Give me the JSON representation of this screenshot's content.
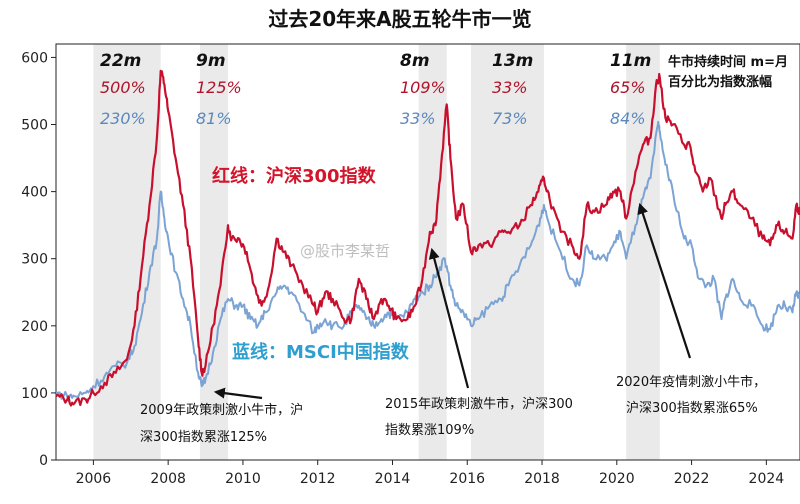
{
  "chart_data": {
    "type": "line",
    "title": "过去20年来A股五轮牛市一览",
    "x_range": [
      2005,
      2024.9
    ],
    "ylim": [
      0,
      620
    ],
    "x_ticks": [
      {
        "v": 2006,
        "t": "2006"
      },
      {
        "v": 2008,
        "t": "2008"
      },
      {
        "v": 2010,
        "t": "2010"
      },
      {
        "v": 2012,
        "t": "2012"
      },
      {
        "v": 2014,
        "t": "2014"
      },
      {
        "v": 2016,
        "t": "2016"
      },
      {
        "v": 2018,
        "t": "2018"
      },
      {
        "v": 2020,
        "t": "2020"
      },
      {
        "v": 2022,
        "t": "2022"
      },
      {
        "v": 2024,
        "t": "2024"
      }
    ],
    "y_ticks": [
      {
        "v": 0,
        "t": "0"
      },
      {
        "v": 100,
        "t": "100"
      },
      {
        "v": 200,
        "t": "200"
      },
      {
        "v": 300,
        "t": "300"
      },
      {
        "v": 400,
        "t": "400"
      },
      {
        "v": 500,
        "t": "500"
      },
      {
        "v": 600,
        "t": "600"
      }
    ],
    "bull_markets": [
      {
        "start": 2006.0,
        "end": 2007.8,
        "duration": "22m",
        "hs300": "500%",
        "msci": "230%"
      },
      {
        "start": 2008.85,
        "end": 2009.6,
        "duration": "9m",
        "hs300": "125%",
        "msci": "81%"
      },
      {
        "start": 2014.7,
        "end": 2015.45,
        "duration": "8m",
        "hs300": "109%",
        "msci": "33%"
      },
      {
        "start": 2016.1,
        "end": 2018.05,
        "duration": "13m",
        "hs300": "33%",
        "msci": "73%"
      },
      {
        "start": 2020.25,
        "end": 2021.15,
        "duration": "11m",
        "hs300": "65%",
        "msci": "84%"
      }
    ],
    "legend_note": [
      "牛市持续时间 m=月",
      "百分比为指数涨幅"
    ],
    "series": [
      {
        "name": "红线：沪深300指数",
        "color": "#c8102e",
        "points": [
          [
            2005.0,
            95
          ],
          [
            2005.3,
            90
          ],
          [
            2005.5,
            85
          ],
          [
            2005.8,
            90
          ],
          [
            2006.0,
            100
          ],
          [
            2006.3,
            115
          ],
          [
            2006.6,
            130
          ],
          [
            2006.9,
            150
          ],
          [
            2007.1,
            200
          ],
          [
            2007.3,
            290
          ],
          [
            2007.5,
            380
          ],
          [
            2007.7,
            480
          ],
          [
            2007.8,
            580
          ],
          [
            2007.9,
            560
          ],
          [
            2008.0,
            520
          ],
          [
            2008.2,
            450
          ],
          [
            2008.4,
            380
          ],
          [
            2008.6,
            300
          ],
          [
            2008.8,
            180
          ],
          [
            2008.9,
            130
          ],
          [
            2009.0,
            140
          ],
          [
            2009.2,
            200
          ],
          [
            2009.4,
            260
          ],
          [
            2009.6,
            350
          ],
          [
            2009.7,
            330
          ],
          [
            2009.9,
            330
          ],
          [
            2010.1,
            310
          ],
          [
            2010.3,
            260
          ],
          [
            2010.5,
            230
          ],
          [
            2010.7,
            260
          ],
          [
            2010.9,
            330
          ],
          [
            2011.1,
            310
          ],
          [
            2011.3,
            290
          ],
          [
            2011.6,
            260
          ],
          [
            2011.9,
            230
          ],
          [
            2012.0,
            220
          ],
          [
            2012.2,
            250
          ],
          [
            2012.4,
            240
          ],
          [
            2012.7,
            210
          ],
          [
            2012.9,
            210
          ],
          [
            2013.1,
            270
          ],
          [
            2013.3,
            240
          ],
          [
            2013.5,
            210
          ],
          [
            2013.7,
            240
          ],
          [
            2013.9,
            230
          ],
          [
            2014.1,
            210
          ],
          [
            2014.4,
            210
          ],
          [
            2014.6,
            230
          ],
          [
            2014.8,
            270
          ],
          [
            2015.0,
            340
          ],
          [
            2015.15,
            350
          ],
          [
            2015.3,
            440
          ],
          [
            2015.45,
            530
          ],
          [
            2015.55,
            450
          ],
          [
            2015.7,
            360
          ],
          [
            2015.9,
            380
          ],
          [
            2016.1,
            310
          ],
          [
            2016.3,
            320
          ],
          [
            2016.6,
            320
          ],
          [
            2016.9,
            340
          ],
          [
            2017.1,
            340
          ],
          [
            2017.4,
            350
          ],
          [
            2017.7,
            380
          ],
          [
            2017.9,
            400
          ],
          [
            2018.05,
            420
          ],
          [
            2018.2,
            390
          ],
          [
            2018.5,
            340
          ],
          [
            2018.8,
            320
          ],
          [
            2019.0,
            300
          ],
          [
            2019.2,
            380
          ],
          [
            2019.4,
            370
          ],
          [
            2019.7,
            380
          ],
          [
            2019.9,
            400
          ],
          [
            2020.1,
            400
          ],
          [
            2020.25,
            360
          ],
          [
            2020.5,
            430
          ],
          [
            2020.7,
            470
          ],
          [
            2020.9,
            480
          ],
          [
            2021.05,
            560
          ],
          [
            2021.15,
            570
          ],
          [
            2021.3,
            510
          ],
          [
            2021.5,
            500
          ],
          [
            2021.8,
            470
          ],
          [
            2021.95,
            470
          ],
          [
            2022.1,
            430
          ],
          [
            2022.3,
            400
          ],
          [
            2022.5,
            420
          ],
          [
            2022.8,
            360
          ],
          [
            2022.9,
            380
          ],
          [
            2023.1,
            400
          ],
          [
            2023.3,
            380
          ],
          [
            2023.6,
            360
          ],
          [
            2023.9,
            330
          ],
          [
            2024.1,
            320
          ],
          [
            2024.3,
            350
          ],
          [
            2024.5,
            340
          ],
          [
            2024.7,
            330
          ],
          [
            2024.8,
            380
          ],
          [
            2024.9,
            370
          ]
        ]
      },
      {
        "name": "蓝线：MSCI中国指数",
        "color": "#7ba3d3",
        "points": [
          [
            2005.0,
            100
          ],
          [
            2005.3,
            95
          ],
          [
            2005.5,
            95
          ],
          [
            2005.8,
            100
          ],
          [
            2006.0,
            110
          ],
          [
            2006.3,
            125
          ],
          [
            2006.6,
            140
          ],
          [
            2006.9,
            145
          ],
          [
            2007.1,
            170
          ],
          [
            2007.3,
            220
          ],
          [
            2007.5,
            280
          ],
          [
            2007.7,
            330
          ],
          [
            2007.8,
            400
          ],
          [
            2007.9,
            360
          ],
          [
            2008.0,
            330
          ],
          [
            2008.2,
            280
          ],
          [
            2008.4,
            240
          ],
          [
            2008.6,
            200
          ],
          [
            2008.8,
            130
          ],
          [
            2008.9,
            110
          ],
          [
            2009.0,
            120
          ],
          [
            2009.2,
            160
          ],
          [
            2009.4,
            210
          ],
          [
            2009.6,
            240
          ],
          [
            2009.8,
            230
          ],
          [
            2010.0,
            230
          ],
          [
            2010.2,
            210
          ],
          [
            2010.4,
            200
          ],
          [
            2010.6,
            220
          ],
          [
            2010.9,
            250
          ],
          [
            2011.1,
            260
          ],
          [
            2011.3,
            250
          ],
          [
            2011.6,
            220
          ],
          [
            2011.9,
            190
          ],
          [
            2012.0,
            200
          ],
          [
            2012.2,
            210
          ],
          [
            2012.4,
            200
          ],
          [
            2012.7,
            200
          ],
          [
            2012.9,
            220
          ],
          [
            2013.1,
            230
          ],
          [
            2013.3,
            210
          ],
          [
            2013.5,
            200
          ],
          [
            2013.7,
            210
          ],
          [
            2013.9,
            220
          ],
          [
            2014.1,
            210
          ],
          [
            2014.4,
            220
          ],
          [
            2014.6,
            240
          ],
          [
            2014.8,
            250
          ],
          [
            2015.0,
            260
          ],
          [
            2015.2,
            280
          ],
          [
            2015.4,
            300
          ],
          [
            2015.55,
            260
          ],
          [
            2015.7,
            230
          ],
          [
            2015.9,
            220
          ],
          [
            2016.1,
            200
          ],
          [
            2016.3,
            210
          ],
          [
            2016.6,
            230
          ],
          [
            2016.9,
            240
          ],
          [
            2017.1,
            260
          ],
          [
            2017.4,
            290
          ],
          [
            2017.7,
            320
          ],
          [
            2017.9,
            350
          ],
          [
            2018.05,
            380
          ],
          [
            2018.2,
            350
          ],
          [
            2018.5,
            310
          ],
          [
            2018.8,
            270
          ],
          [
            2019.0,
            260
          ],
          [
            2019.2,
            320
          ],
          [
            2019.4,
            300
          ],
          [
            2019.7,
            300
          ],
          [
            2019.9,
            320
          ],
          [
            2020.1,
            340
          ],
          [
            2020.25,
            300
          ],
          [
            2020.5,
            350
          ],
          [
            2020.7,
            390
          ],
          [
            2020.9,
            420
          ],
          [
            2021.1,
            500
          ],
          [
            2021.15,
            490
          ],
          [
            2021.3,
            440
          ],
          [
            2021.5,
            400
          ],
          [
            2021.8,
            330
          ],
          [
            2022.0,
            320
          ],
          [
            2022.2,
            270
          ],
          [
            2022.4,
            260
          ],
          [
            2022.6,
            270
          ],
          [
            2022.8,
            210
          ],
          [
            2022.9,
            240
          ],
          [
            2023.1,
            270
          ],
          [
            2023.3,
            240
          ],
          [
            2023.6,
            230
          ],
          [
            2023.9,
            200
          ],
          [
            2024.1,
            195
          ],
          [
            2024.3,
            230
          ],
          [
            2024.5,
            230
          ],
          [
            2024.7,
            220
          ],
          [
            2024.8,
            250
          ],
          [
            2024.9,
            240
          ]
        ]
      }
    ],
    "labels": {
      "red": "红线：沪深300指数",
      "blue": "蓝线：MSCI中国指数"
    },
    "annotations": [
      {
        "lines": [
          "2009年政策刺激小牛市，沪",
          "深300指数累涨125%"
        ]
      },
      {
        "lines": [
          "2015年政策刺激牛市，沪深300",
          "指数累涨109%"
        ]
      },
      {
        "lines": [
          "2020年疫情刺激小牛市，",
          "沪深300指数累涨65%"
        ]
      }
    ],
    "watermark": "@股市李某哲",
    "colors": {
      "red": "#c8102e",
      "blue": "#7ba3d3",
      "shade": "#d9d9d9"
    }
  }
}
